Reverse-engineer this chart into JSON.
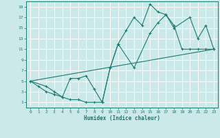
{
  "background_color": "#cce9e9",
  "grid_color": "#ffffff",
  "line_color": "#1a7a6e",
  "xlabel": "Humidex (Indice chaleur)",
  "xlim": [
    -0.5,
    23.5
  ],
  "ylim": [
    0,
    20
  ],
  "xticks": [
    0,
    1,
    2,
    3,
    4,
    5,
    6,
    7,
    8,
    9,
    10,
    11,
    12,
    13,
    14,
    15,
    16,
    17,
    18,
    19,
    20,
    21,
    22,
    23
  ],
  "yticks": [
    1,
    3,
    5,
    7,
    9,
    11,
    13,
    15,
    17,
    19
  ],
  "line1_x": [
    0,
    1,
    2,
    3,
    4,
    5,
    6,
    7,
    8,
    9,
    10,
    11,
    12,
    13,
    14,
    15,
    16,
    17,
    18,
    19,
    20,
    21,
    22,
    23
  ],
  "line1_y": [
    5,
    4,
    3,
    2.5,
    2,
    1.5,
    1.5,
    1,
    1,
    1,
    7.5,
    12,
    14.5,
    17,
    15.5,
    19.5,
    18,
    17.5,
    15.5,
    11,
    11,
    11,
    11,
    11
  ],
  "line2_x": [
    0,
    23
  ],
  "line2_y": [
    5,
    11
  ],
  "line3_x": [
    0,
    2,
    3,
    4,
    5,
    6,
    7,
    8,
    9,
    10,
    11,
    13,
    15,
    16,
    17,
    18,
    20,
    21,
    22,
    23
  ],
  "line3_y": [
    5,
    4,
    3,
    2,
    5.5,
    5.5,
    6,
    3.5,
    1,
    7.5,
    12,
    7.5,
    14,
    16,
    17.5,
    15,
    17,
    13,
    15.5,
    11
  ]
}
